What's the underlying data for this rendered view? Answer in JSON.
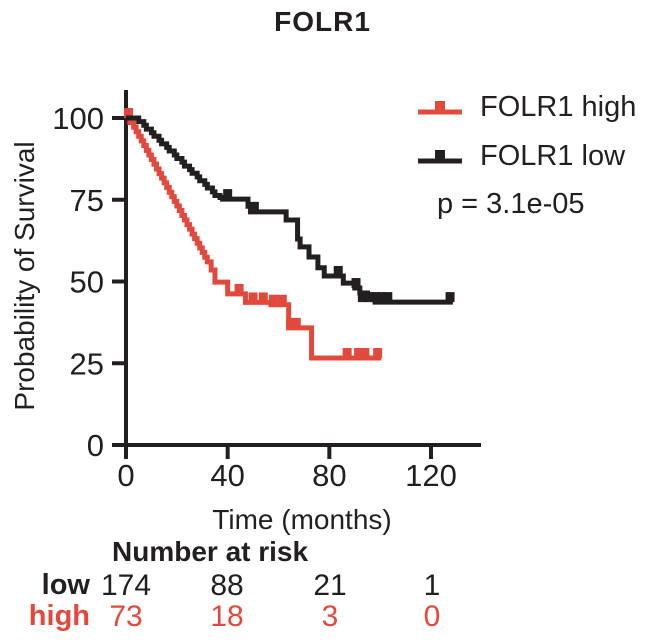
{
  "title": "FOLR1",
  "colors": {
    "high": "#E2493D",
    "low": "#231F20",
    "axis": "#231F20",
    "text": "#231F20"
  },
  "chart_data": {
    "type": "line",
    "subtype": "kaplan-meier-survival-step",
    "title": "FOLR1",
    "x_axis": {
      "title": "Time (months)",
      "ticks": [
        0,
        40,
        80,
        120
      ],
      "range": [
        0,
        140
      ]
    },
    "y_axis": {
      "title": "Probability of Survival",
      "ticks": [
        0,
        25,
        50,
        75,
        100
      ],
      "range": [
        0,
        100
      ]
    },
    "p_value_label": "p = 3.1e-05",
    "legend_position": "right-top",
    "grid": false,
    "series": [
      {
        "name": "FOLR1 high",
        "group": "high",
        "end_time": 100.5,
        "points": [
          [
            0,
            100
          ],
          [
            1.5,
            98.6
          ],
          [
            3,
            97.2
          ],
          [
            4,
            95.8
          ],
          [
            5,
            94.4
          ],
          [
            6,
            93
          ],
          [
            7,
            91.6
          ],
          [
            8,
            90.1
          ],
          [
            9,
            88.7
          ],
          [
            10,
            87.3
          ],
          [
            11,
            85.9
          ],
          [
            12,
            84.4
          ],
          [
            13,
            83
          ],
          [
            14,
            81.6
          ],
          [
            15,
            80.2
          ],
          [
            16,
            78.8
          ],
          [
            17,
            77.3
          ],
          [
            18,
            75.9
          ],
          [
            19,
            74.5
          ],
          [
            20,
            73.1
          ],
          [
            21,
            71.7
          ],
          [
            22,
            70.2
          ],
          [
            23,
            68.8
          ],
          [
            24,
            67.4
          ],
          [
            25,
            66
          ],
          [
            26,
            64.5
          ],
          [
            27,
            63.1
          ],
          [
            28,
            61.7
          ],
          [
            29,
            60.3
          ],
          [
            30,
            58.9
          ],
          [
            31,
            57.4
          ],
          [
            32,
            56
          ],
          [
            33.5,
            53.5
          ],
          [
            35,
            49.8
          ],
          [
            40,
            46.2
          ],
          [
            47,
            43.6
          ],
          [
            57,
            42.9
          ],
          [
            64,
            35.8
          ],
          [
            73,
            26.6
          ]
        ],
        "censors": [
          [
            1,
            100
          ],
          [
            44.5,
            46.2
          ],
          [
            50,
            43.6
          ],
          [
            54,
            43.6
          ],
          [
            58,
            42.9
          ],
          [
            61.5,
            42.9
          ],
          [
            64.8,
            35.8
          ],
          [
            67,
            35.8
          ],
          [
            87,
            26.6
          ],
          [
            91.5,
            26.6
          ],
          [
            94,
            26.6
          ],
          [
            99,
            26.6
          ]
        ]
      },
      {
        "name": "FOLR1 low",
        "group": "low",
        "end_time": 128.6,
        "points": [
          [
            0,
            100
          ],
          [
            5,
            98.9
          ],
          [
            7,
            97.8
          ],
          [
            8,
            96.6
          ],
          [
            10,
            95.5
          ],
          [
            11,
            94.4
          ],
          [
            13,
            93.2
          ],
          [
            14,
            92.1
          ],
          [
            16,
            91
          ],
          [
            17,
            89.9
          ],
          [
            19,
            88.7
          ],
          [
            20,
            87.6
          ],
          [
            22,
            86.5
          ],
          [
            23,
            85.3
          ],
          [
            25,
            84.2
          ],
          [
            26,
            83.1
          ],
          [
            28,
            82
          ],
          [
            29,
            80.8
          ],
          [
            31,
            79.7
          ],
          [
            32,
            78.6
          ],
          [
            34,
            77.4
          ],
          [
            35,
            76.3
          ],
          [
            37,
            75.7
          ],
          [
            38,
            75.2
          ],
          [
            48,
            73
          ],
          [
            49,
            71.3
          ],
          [
            63,
            68.8
          ],
          [
            67.5,
            63
          ],
          [
            68.5,
            60.6
          ],
          [
            72,
            57.5
          ],
          [
            75.5,
            54.2
          ],
          [
            78,
            51.7
          ],
          [
            85.5,
            49.5
          ],
          [
            90,
            48
          ],
          [
            92,
            46.5
          ],
          [
            95,
            45.2
          ],
          [
            98,
            43.7
          ]
        ],
        "censors": [
          [
            40,
            75.2
          ],
          [
            50.5,
            71.3
          ],
          [
            83.5,
            51.7
          ],
          [
            90.5,
            48
          ],
          [
            93,
            43.7
          ],
          [
            95.5,
            43.7
          ],
          [
            98,
            43.7
          ],
          [
            100.5,
            43.7
          ],
          [
            103,
            43.7
          ],
          [
            127.5,
            43.7
          ]
        ]
      }
    ]
  },
  "legend": {
    "items": [
      {
        "label": "FOLR1 high",
        "group": "high"
      },
      {
        "label": "FOLR1 low",
        "group": "low"
      }
    ]
  },
  "at_risk": {
    "header": "Number at risk",
    "rows": [
      {
        "label": "low",
        "group": "low",
        "values": [
          "174",
          "88",
          "21",
          "1"
        ]
      },
      {
        "label": "high",
        "group": "high",
        "values": [
          "73",
          "18",
          "3",
          "0"
        ]
      }
    ]
  }
}
